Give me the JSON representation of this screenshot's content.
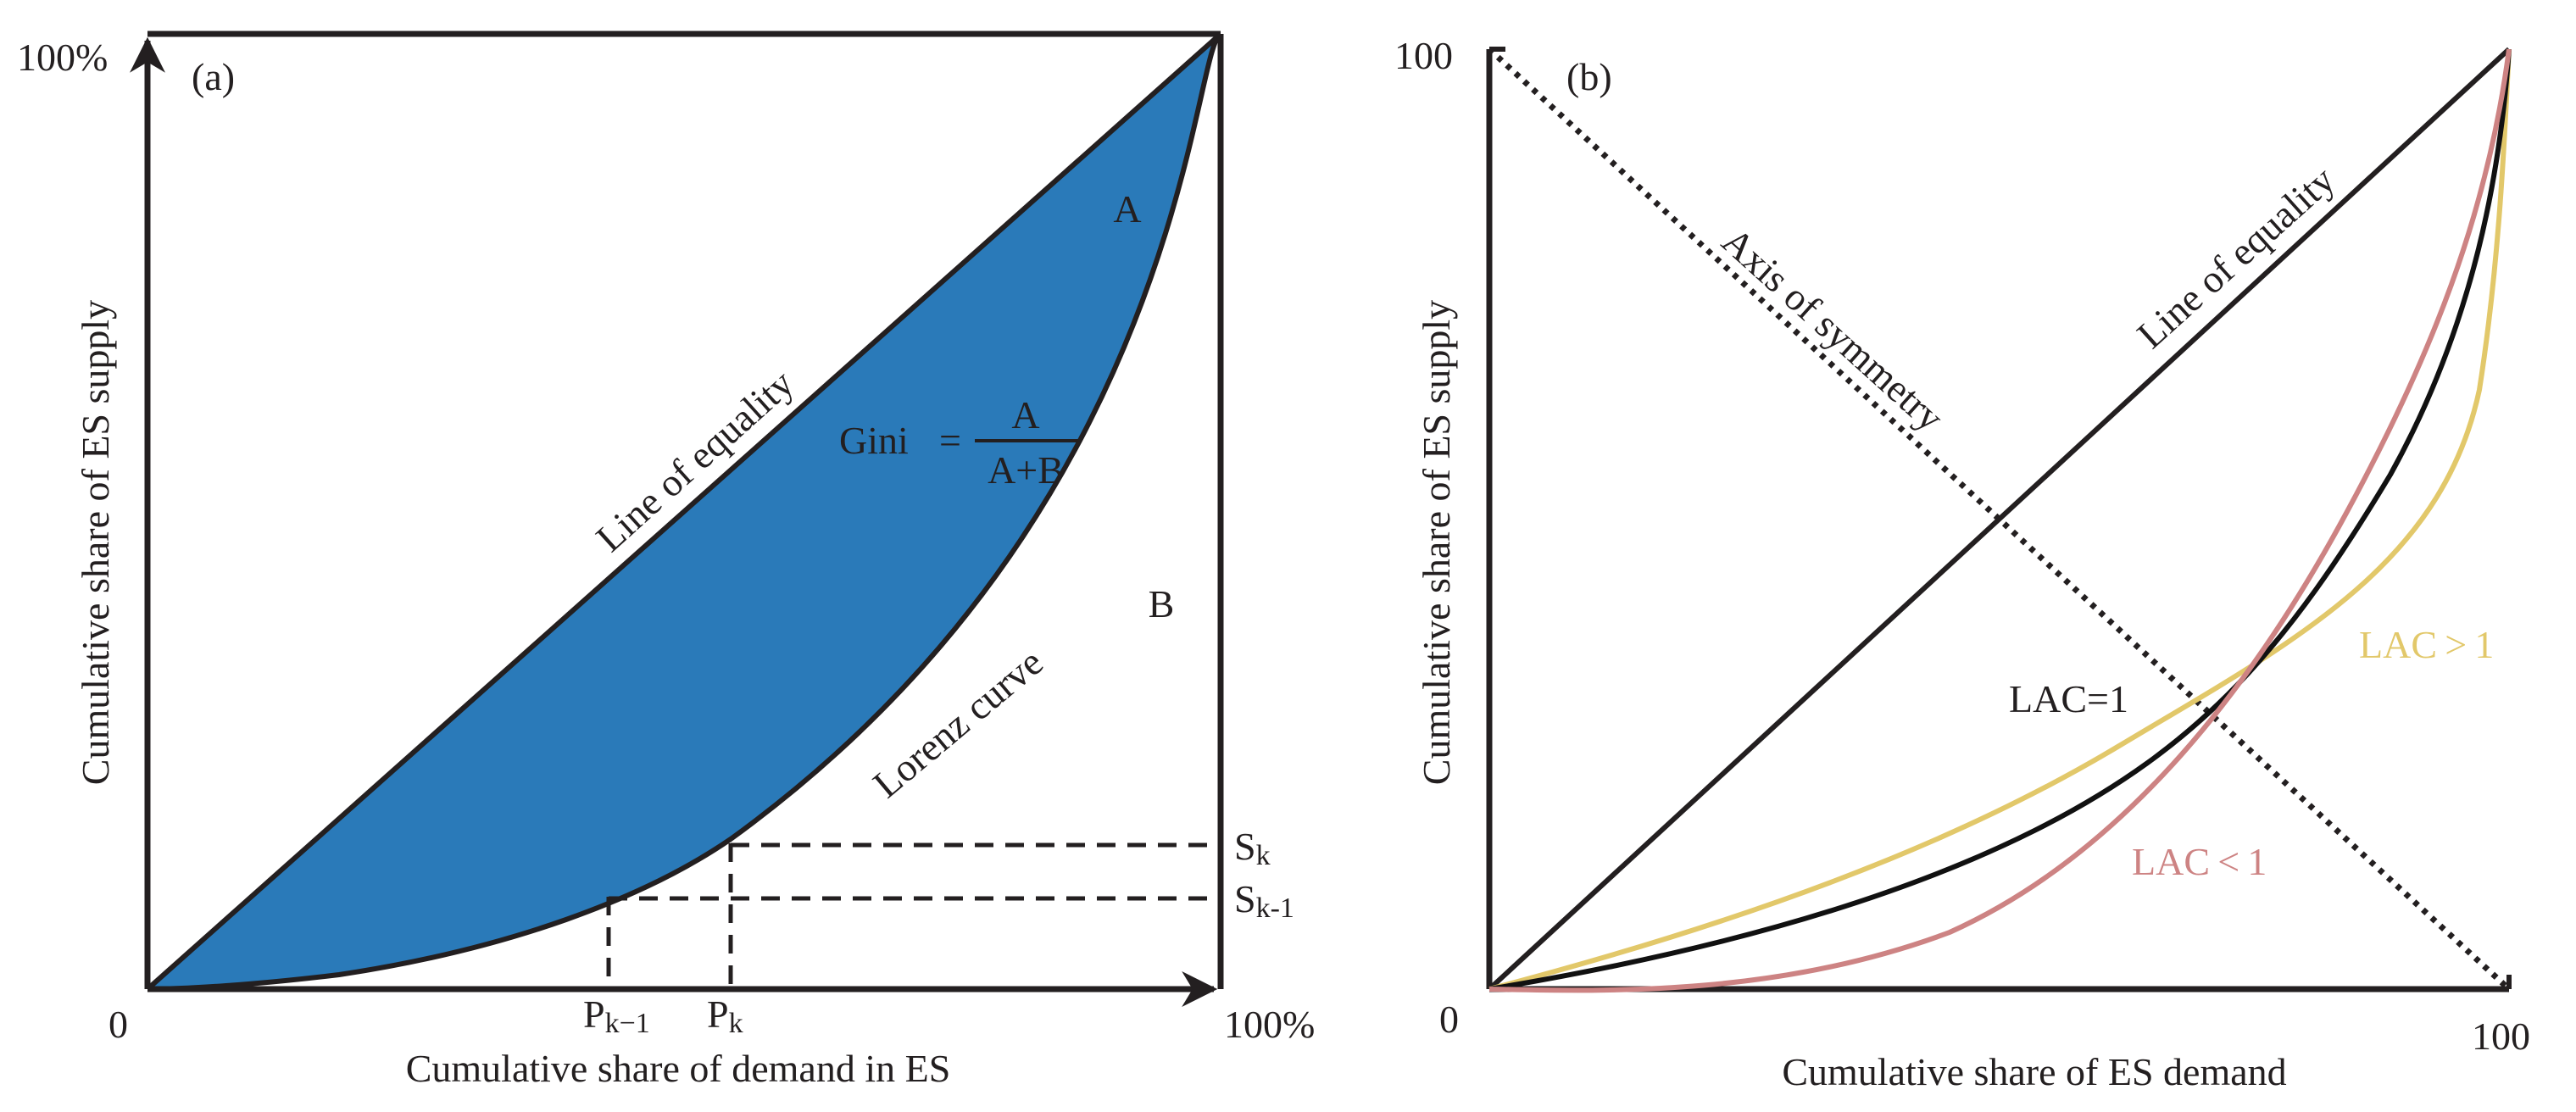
{
  "panel_a": {
    "tag": "(a)",
    "origin_label": "0",
    "x_end_label": "100%",
    "y_end_label": "100%",
    "xlabel": "Cumulative share of demand in ES",
    "ylabel": "Cumulative share of ES supply",
    "line_of_equality": "Line of equality",
    "lorenz_curve": "Lorenz curve",
    "area_a": "A",
    "area_b": "B",
    "gini_label": "Gini",
    "gini_eq": "=",
    "gini_numerator": "A",
    "gini_denominator": "A+B",
    "p_k_minus_1": "P",
    "p_k_minus_1_sub": "k−1",
    "p_k": "P",
    "p_k_sub": "k",
    "s_k": "S",
    "s_k_sub": "k",
    "s_k_minus_1": "S",
    "s_k_minus_1_sub": "k-1",
    "fill_color": "#2a7ab9"
  },
  "panel_b": {
    "tag": "(b)",
    "origin_label": "0",
    "x_end_label": "100",
    "y_end_label": "100",
    "xlabel": "Cumulative share of ES demand",
    "ylabel": "Cumulative share of ES supply",
    "line_of_equality": "Line of equality",
    "axis_of_symmetry": "Axis of symmetry",
    "lac_eq": "LAC=1",
    "lac_gt": "LAC > 1",
    "lac_lt": "LAC < 1",
    "lac_gt_color": "#e2c86a",
    "lac_lt_color": "#cd8383",
    "lac_eq_color": "#111111"
  }
}
